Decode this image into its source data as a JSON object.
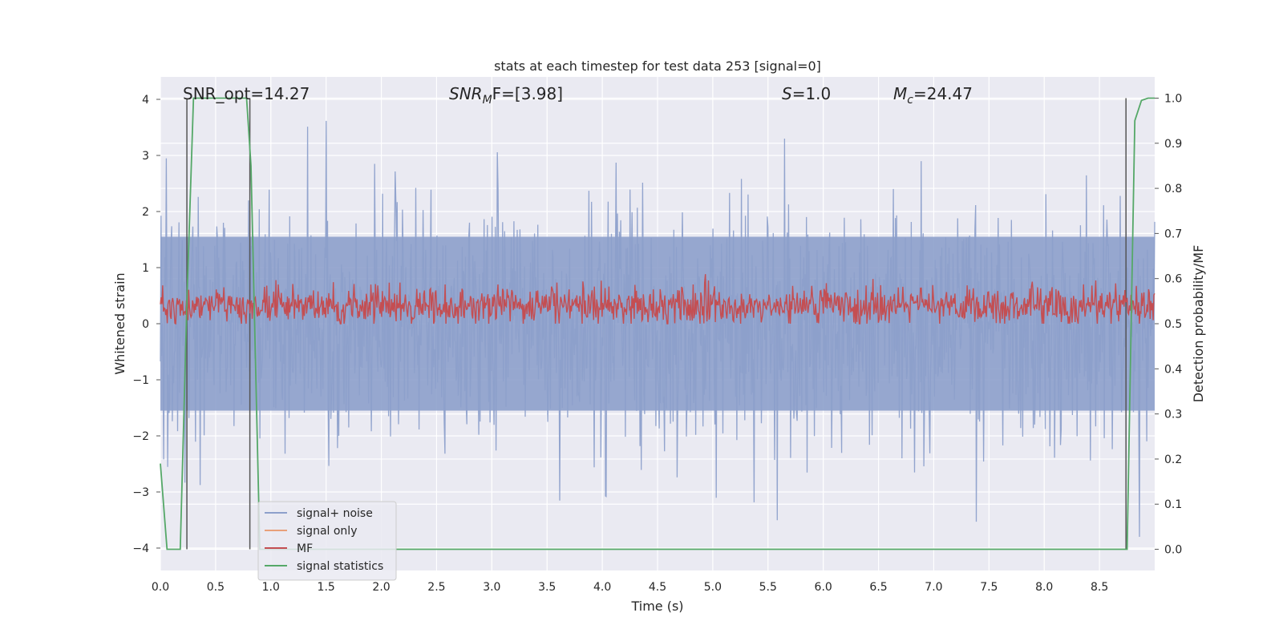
{
  "chart_data": {
    "type": "line",
    "title": "stats at each timestep for test data 253 [signal=0]",
    "xlabel": "Time (s)",
    "ylabel": "Whitened strain",
    "y2label": "Detection probability/MF",
    "xlim": [
      0.0,
      9.0
    ],
    "ylim": [
      -4.4,
      4.4
    ],
    "y2lim": [
      -0.047,
      1.047
    ],
    "xticks": [
      "0.0",
      "0.5",
      "1.0",
      "1.5",
      "2.0",
      "2.5",
      "3.0",
      "3.5",
      "4.0",
      "4.5",
      "5.0",
      "5.5",
      "6.0",
      "6.5",
      "7.0",
      "7.5",
      "8.0",
      "8.5"
    ],
    "yticks": [
      "4",
      "3",
      "2",
      "1",
      "0",
      "−1",
      "−2",
      "−3",
      "−4"
    ],
    "y2ticks": [
      "1.0",
      "0.9",
      "0.8",
      "0.7",
      "0.6",
      "0.5",
      "0.4",
      "0.3",
      "0.2",
      "0.1",
      "0.0"
    ],
    "grid": true,
    "legend_position": "lower-left",
    "annotations": [
      {
        "id": "snr_opt",
        "text": "SNR_opt=14.27"
      },
      {
        "id": "snr_mf",
        "text": "SNRₘF=[3.98]",
        "html_base": "SNR",
        "html_sub": "M",
        "html_tail": "F=[3.98]"
      },
      {
        "id": "s",
        "text": "S=1.0",
        "html_base": "S",
        "html_tail": "=1.0"
      },
      {
        "id": "mc",
        "text": "Mc=24.47",
        "html_base": "M",
        "html_sub": "c",
        "html_tail": "=24.47"
      }
    ],
    "series": [
      {
        "name": "signal+ noise",
        "color": "#8da0cb",
        "axis": "left",
        "description": "whitened strain noise, amplitude about ±2.5, peaks to ±4"
      },
      {
        "name": "signal only",
        "color": "#e8a07a",
        "axis": "left"
      },
      {
        "name": "MF",
        "color": "#c44e52",
        "axis": "right",
        "description": "matched filter output, around 0.52-0.60"
      },
      {
        "name": "signal statistics",
        "color": "#55a868",
        "axis": "right",
        "x": [
          0.0,
          0.06,
          0.18,
          0.24,
          0.3,
          0.78,
          0.82,
          0.9,
          1.0,
          8.5,
          8.75,
          8.82,
          8.88,
          8.94,
          9.0
        ],
        "y": [
          0.19,
          0.0,
          0.0,
          0.55,
          1.0,
          1.0,
          0.85,
          0.0,
          0.0,
          0.0,
          0.0,
          0.95,
          0.995,
          1.0,
          1.0
        ]
      }
    ],
    "markers_vertical": [
      {
        "x": 0.24,
        "color": "#555555"
      },
      {
        "x": 0.81,
        "color": "#555555"
      },
      {
        "x": 8.74,
        "color": "#555555"
      }
    ]
  }
}
